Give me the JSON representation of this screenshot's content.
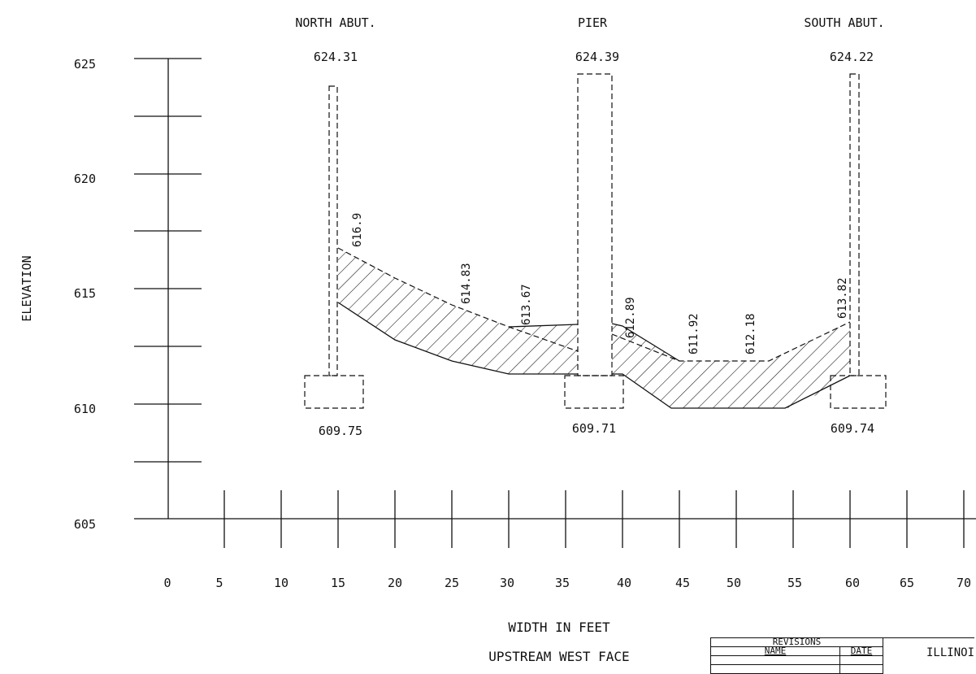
{
  "headers": {
    "north": "NORTH ABUT.",
    "pier": "PIER",
    "south": "SOUTH ABUT."
  },
  "top_elevations": {
    "north": "624.31",
    "pier": "624.39",
    "south": "624.22"
  },
  "footing_elevations": {
    "north": "609.75",
    "pier": "609.71",
    "south": "609.74"
  },
  "y_axis": {
    "label": "ELEVATION",
    "ticks": [
      "625",
      "620",
      "615",
      "610",
      "605"
    ]
  },
  "x_axis": {
    "ticks": [
      "0",
      "5",
      "10",
      "15",
      "20",
      "25",
      "30",
      "35",
      "40",
      "45",
      "50",
      "55",
      "60",
      "65",
      "70"
    ]
  },
  "labels": {
    "x_title": "WIDTH IN FEET",
    "subtitle": "UPSTREAM WEST FACE"
  },
  "streambed_labels": [
    "616.9",
    "614.83",
    "613.67",
    "612.89",
    "611.92",
    "612.18",
    "613.82"
  ],
  "revisions": {
    "title": "REVISIONS",
    "name_col": "NAME",
    "date_col": "DATE"
  },
  "agency": "ILLINOI"
}
